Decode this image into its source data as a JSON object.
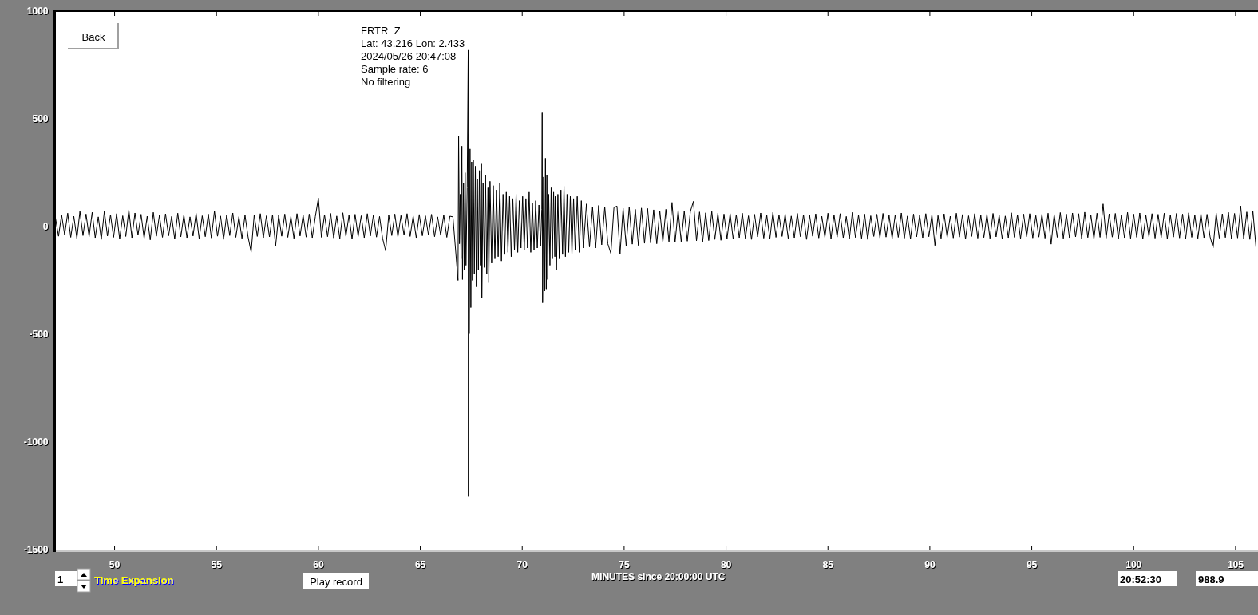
{
  "chart_data": {
    "type": "line",
    "xlabel": "MINUTES since 20:00:00 UTC",
    "annotations": [
      "FRTR  Z",
      "Lat: 43.216 Lon: 2.433",
      "2024/05/26 20:47:08",
      "Sample rate: 6",
      "No filtering",
      "Back",
      "1",
      "Time Expansion",
      "Play record",
      "20:52:30",
      "988.9"
    ],
    "xlim": [
      47.1,
      106.1
    ],
    "xticks": [
      50,
      55,
      60,
      65,
      70,
      75,
      80,
      85,
      90,
      95,
      100,
      105
    ],
    "ylim": [
      -1500,
      1000
    ],
    "yticks": [
      1000,
      500,
      0,
      -500,
      -1000,
      -1500
    ],
    "color": "#000000",
    "x": [
      47.1,
      47.25,
      47.4,
      47.55,
      47.7,
      47.85,
      48,
      48.15,
      48.3,
      48.45,
      48.6,
      48.75,
      48.9,
      49.05,
      49.2,
      49.35,
      49.5,
      49.65,
      49.8,
      49.95,
      50.1,
      50.25,
      50.4,
      50.55,
      50.7,
      50.85,
      51,
      51.15,
      51.3,
      51.45,
      51.6,
      51.75,
      51.9,
      52.05,
      52.2,
      52.35,
      52.5,
      52.65,
      52.8,
      52.95,
      53.1,
      53.25,
      53.4,
      53.55,
      53.7,
      53.85,
      54,
      54.15,
      54.3,
      54.45,
      54.6,
      54.75,
      54.9,
      55.05,
      55.2,
      55.35,
      55.5,
      55.65,
      55.8,
      55.95,
      56.1,
      56.25,
      56.4,
      56.55,
      56.7,
      56.85,
      57,
      57.15,
      57.3,
      57.45,
      57.6,
      57.75,
      57.9,
      58.05,
      58.2,
      58.35,
      58.5,
      58.65,
      58.8,
      58.95,
      59.1,
      59.25,
      59.4,
      59.55,
      59.7,
      59.85,
      60,
      60.15,
      60.3,
      60.45,
      60.6,
      60.75,
      60.9,
      61.05,
      61.2,
      61.35,
      61.5,
      61.65,
      61.8,
      61.95,
      62.1,
      62.25,
      62.4,
      62.55,
      62.7,
      62.85,
      63,
      63.15,
      63.3,
      63.45,
      63.6,
      63.75,
      63.9,
      64.05,
      64.2,
      64.35,
      64.5,
      64.65,
      64.8,
      64.95,
      65.1,
      65.25,
      65.4,
      65.55,
      65.7,
      65.85,
      66,
      66.15,
      66.3,
      66.45,
      66.6,
      66.85,
      66.88,
      66.92,
      66.96,
      67.0,
      67.04,
      67.07,
      67.12,
      67.16,
      67.2,
      67.24,
      67.3,
      67.35,
      67.36,
      67.38,
      67.4,
      67.44,
      67.48,
      67.52,
      67.56,
      67.6,
      67.65,
      67.7,
      67.75,
      67.8,
      67.85,
      67.9,
      67.95,
      68.0,
      68.02,
      68.08,
      68.14,
      68.2,
      68.26,
      68.32,
      68.36,
      68.42,
      68.5,
      68.58,
      68.66,
      68.74,
      68.82,
      68.9,
      68.98,
      69.06,
      69.14,
      69.22,
      69.3,
      69.38,
      69.46,
      69.54,
      69.62,
      69.7,
      69.78,
      69.86,
      69.94,
      70.02,
      70.1,
      70.18,
      70.26,
      70.34,
      70.42,
      70.5,
      70.58,
      70.66,
      70.74,
      70.82,
      70.9,
      70.96,
      70.98,
      71.0,
      71.05,
      71.1,
      71.14,
      71.18,
      71.21,
      71.25,
      71.3,
      71.36,
      71.42,
      71.48,
      71.54,
      71.6,
      71.62,
      71.68,
      71.75,
      71.82,
      71.9,
      71.98,
      72.05,
      72.12,
      72.2,
      72.28,
      72.36,
      72.44,
      72.52,
      72.6,
      72.7,
      72.8,
      72.9,
      73.0,
      73.15,
      73.3,
      73.45,
      73.6,
      73.75,
      73.9,
      74.05,
      74.2,
      74.35,
      74.5,
      74.65,
      74.8,
      74.95,
      75.1,
      75.25,
      75.4,
      75.55,
      75.7,
      75.85,
      76,
      76.15,
      76.3,
      76.45,
      76.6,
      76.75,
      76.9,
      77.05,
      77.2,
      77.35,
      77.5,
      77.65,
      77.8,
      77.95,
      78.1,
      78.25,
      78.4,
      78.55,
      78.7,
      78.85,
      79,
      79.15,
      79.3,
      79.45,
      79.6,
      79.75,
      79.9,
      80.05,
      80.2,
      80.35,
      80.5,
      80.65,
      80.8,
      80.95,
      81.1,
      81.25,
      81.4,
      81.55,
      81.7,
      81.85,
      82,
      82.15,
      82.3,
      82.45,
      82.6,
      82.75,
      82.9,
      83.05,
      83.2,
      83.35,
      83.5,
      83.65,
      83.8,
      83.95,
      84.1,
      84.25,
      84.4,
      84.55,
      84.7,
      84.85,
      85,
      85.15,
      85.3,
      85.45,
      85.6,
      85.75,
      85.9,
      86.05,
      86.2,
      86.35,
      86.5,
      86.65,
      86.8,
      86.95,
      87.1,
      87.25,
      87.4,
      87.55,
      87.7,
      87.85,
      88,
      88.15,
      88.3,
      88.45,
      88.6,
      88.75,
      88.9,
      89.05,
      89.2,
      89.35,
      89.5,
      89.65,
      89.8,
      89.95,
      90.1,
      90.25,
      90.4,
      90.55,
      90.7,
      90.85,
      91,
      91.15,
      91.3,
      91.45,
      91.6,
      91.75,
      91.9,
      92.05,
      92.2,
      92.35,
      92.5,
      92.65,
      92.8,
      92.95,
      93.1,
      93.25,
      93.4,
      93.55,
      93.7,
      93.85,
      94,
      94.15,
      94.3,
      94.45,
      94.6,
      94.75,
      94.9,
      95.05,
      95.2,
      95.35,
      95.5,
      95.65,
      95.8,
      95.95,
      96.1,
      96.25,
      96.4,
      96.55,
      96.7,
      96.85,
      97,
      97.15,
      97.3,
      97.45,
      97.6,
      97.75,
      97.9,
      98.05,
      98.2,
      98.35,
      98.5,
      98.65,
      98.8,
      98.95,
      99.1,
      99.25,
      99.4,
      99.55,
      99.7,
      99.85,
      100,
      100.15,
      100.3,
      100.45,
      100.6,
      100.75,
      100.9,
      101.05,
      101.2,
      101.35,
      101.5,
      101.65,
      101.8,
      101.95,
      102.1,
      102.25,
      102.4,
      102.55,
      102.7,
      102.85,
      103,
      103.15,
      103.3,
      103.45,
      103.6,
      103.75,
      103.9,
      104.05,
      104.2,
      104.35,
      104.5,
      104.65,
      104.8,
      104.95,
      105.1,
      105.25,
      105.4,
      105.55,
      105.7,
      105.85,
      106
    ],
    "values": [
      40,
      -45,
      55,
      -38,
      62,
      -50,
      48,
      -55,
      70,
      -42,
      58,
      -47,
      66,
      -52,
      45,
      -60,
      72,
      -44,
      55,
      -50,
      60,
      -58,
      50,
      -46,
      78,
      -52,
      63,
      -40,
      57,
      -55,
      48,
      -62,
      66,
      -45,
      52,
      -50,
      59,
      -43,
      47,
      -58,
      62,
      -48,
      54,
      -52,
      45,
      -44,
      61,
      -56,
      50,
      -47,
      58,
      -53,
      72,
      -45,
      49,
      -60,
      55,
      -42,
      63,
      -50,
      46,
      -55,
      52,
      -48,
      -119,
      54,
      -46,
      60,
      -52,
      50,
      -48,
      55,
      -91,
      52,
      -45,
      58,
      -50,
      47,
      -55,
      60,
      -44,
      53,
      -49,
      58,
      -52,
      46,
      132,
      -50,
      55,
      -47,
      61,
      -53,
      49,
      -56,
      64,
      -45,
      52,
      -58,
      57,
      -46,
      50,
      -52,
      60,
      -44,
      55,
      -49,
      47,
      -55,
      -113,
      53,
      -42,
      58,
      -48,
      51,
      -40,
      60,
      -46,
      49,
      -52,
      56,
      -43,
      50,
      -39,
      57,
      -47,
      45,
      -41,
      54,
      -50,
      48,
      45,
      -250,
      420,
      -80,
      150,
      -150,
      373,
      -246,
      200,
      -200,
      250,
      -180,
      180,
      819,
      -1253,
      429,
      -498,
      360,
      -376,
      300,
      -250,
      310,
      -220,
      280,
      -280,
      220,
      -200,
      260,
      -180,
      294,
      -332,
      200,
      -190,
      240,
      -220,
      180,
      -261,
      210,
      -170,
      190,
      -150,
      170,
      -140,
      200,
      -160,
      150,
      -130,
      160,
      -120,
      140,
      -140,
      130,
      -110,
      150,
      -120,
      120,
      -100,
      140,
      -110,
      130,
      -100,
      160,
      -120,
      110,
      -110,
      120,
      -100,
      100,
      -90,
      80,
      528,
      -354,
      230,
      -300,
      317,
      -290,
      239,
      -246,
      150,
      -180,
      180,
      -150,
      160,
      -140,
      140,
      -202,
      150,
      -150,
      170,
      -130,
      187,
      -140,
      150,
      -120,
      140,
      -130,
      130,
      -110,
      140,
      -120,
      120,
      -100,
      105,
      -95,
      90,
      -100,
      98,
      -85,
      92,
      -80,
      -125,
      88,
      95,
      -128,
      85,
      -90,
      92,
      -82,
      80,
      -88,
      86,
      -78,
      84,
      -76,
      78,
      -80,
      74,
      -72,
      80,
      -70,
      112,
      -74,
      76,
      -70,
      72,
      -68,
      70,
      117,
      -66,
      68,
      -72,
      64,
      -65,
      70,
      -60,
      62,
      -64,
      58,
      -56,
      60,
      -58,
      55,
      -52,
      62,
      -55,
      50,
      -60,
      57,
      -48,
      63,
      -54,
      52,
      -57,
      66,
      -50,
      54,
      -46,
      58,
      -55,
      49,
      -52,
      61,
      -47,
      55,
      -60,
      52,
      -45,
      59,
      -53,
      48,
      -50,
      62,
      -56,
      54,
      -49,
      60,
      -52,
      47,
      -58,
      66,
      -51,
      53,
      -55,
      58,
      -60,
      50,
      -46,
      57,
      -53,
      61,
      -49,
      52,
      -56,
      55,
      -50,
      63,
      -54,
      49,
      -57,
      58,
      -48,
      53,
      -52,
      60,
      -47,
      55,
      -88,
      51,
      -55,
      59,
      -50,
      48,
      -53,
      62,
      -49,
      56,
      -58,
      50,
      -46,
      60,
      -54,
      52,
      -51,
      57,
      -55,
      61,
      -48,
      53,
      -57,
      49,
      -52,
      64,
      -50,
      55,
      -56,
      58,
      -47,
      60,
      -53,
      51,
      -49,
      57,
      -54,
      62,
      -82,
      56,
      -50,
      65,
      -55,
      58,
      -52,
      63,
      -48,
      60,
      -56,
      67,
      -51,
      55,
      -58,
      62,
      -50,
      105,
      -54,
      59,
      -49,
      61,
      -57,
      54,
      -52,
      66,
      -55,
      58,
      -50,
      63,
      -58,
      52,
      -47,
      60,
      -54,
      57,
      -51,
      62,
      -56,
      55,
      -49,
      61,
      -53,
      58,
      -57,
      64,
      -50,
      53,
      -55,
      60,
      -52,
      57,
      -48,
      -98,
      62,
      -54,
      59,
      -51,
      66,
      -56,
      61,
      -53,
      96,
      -58,
      68,
      -60,
      72,
      -95
    ]
  }
}
